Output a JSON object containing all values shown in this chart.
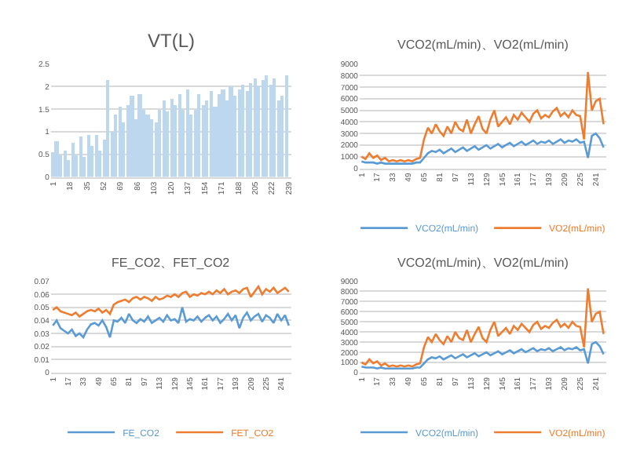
{
  "chart_data": [
    {
      "type": "bar",
      "title": "VT(L)",
      "color": "#bdd7ee",
      "grid": "y",
      "legend": false,
      "x": [
        1,
        5,
        9,
        13,
        17,
        21,
        25,
        29,
        33,
        37,
        41,
        45,
        49,
        53,
        57,
        61,
        65,
        69,
        73,
        77,
        81,
        85,
        89,
        93,
        97,
        101,
        105,
        109,
        113,
        117,
        121,
        125,
        129,
        133,
        137,
        141,
        145,
        149,
        153,
        157,
        161,
        165,
        169,
        173,
        177,
        181,
        185,
        189,
        193,
        197,
        201,
        205,
        209,
        213,
        217,
        221,
        225,
        229,
        233,
        237
      ],
      "values": [
        0.55,
        0.8,
        0.5,
        0.6,
        0.4,
        0.75,
        0.5,
        0.9,
        0.45,
        0.95,
        0.7,
        0.95,
        0.6,
        0.85,
        2.15,
        1.0,
        1.4,
        1.55,
        1.2,
        1.6,
        1.8,
        1.3,
        1.85,
        1.5,
        1.4,
        1.3,
        1.2,
        1.5,
        1.7,
        1.45,
        1.75,
        1.6,
        1.85,
        1.5,
        1.95,
        1.4,
        1.5,
        1.85,
        1.6,
        1.7,
        1.9,
        1.55,
        1.85,
        1.95,
        1.7,
        2.0,
        1.8,
        1.95,
        2.05,
        1.9,
        2.1,
        2.2,
        2.0,
        2.15,
        2.25,
        2.05,
        2.2,
        1.7,
        1.8,
        2.25
      ],
      "xlim": [
        -1,
        242
      ],
      "xticks": [
        1,
        18,
        35,
        52,
        69,
        86,
        103,
        120,
        137,
        154,
        171,
        188,
        205,
        222,
        239
      ],
      "ylim": [
        0,
        2.5
      ],
      "yticks": [
        0,
        0.5,
        1,
        1.5,
        2,
        2.5
      ]
    },
    {
      "type": "line",
      "title": "VCO2(mL/min)、VO2(mL/min)",
      "grid": "y",
      "legend": "bottom",
      "marker": "none",
      "line_style": "solid",
      "x": [
        1,
        5,
        9,
        13,
        17,
        21,
        25,
        29,
        33,
        37,
        41,
        45,
        49,
        53,
        57,
        61,
        65,
        69,
        73,
        77,
        81,
        85,
        89,
        93,
        97,
        101,
        105,
        109,
        113,
        117,
        121,
        125,
        129,
        133,
        137,
        141,
        145,
        149,
        153,
        157,
        161,
        165,
        169,
        173,
        177,
        181,
        185,
        189,
        193,
        197,
        201,
        205,
        209,
        213,
        217,
        221,
        225,
        229,
        233,
        237,
        241,
        245,
        249
      ],
      "series": [
        {
          "name": "VCO2(mL/min)",
          "color": "#5b9bd5",
          "values": [
            600,
            500,
            500,
            500,
            400,
            500,
            400,
            400,
            400,
            400,
            400,
            400,
            400,
            400,
            500,
            500,
            900,
            1300,
            1500,
            1400,
            1600,
            1300,
            1500,
            1700,
            1400,
            1600,
            1800,
            1500,
            1700,
            1900,
            1600,
            1800,
            2000,
            1700,
            1900,
            2100,
            1800,
            2000,
            2200,
            1900,
            2100,
            2300,
            2000,
            2200,
            2400,
            2100,
            2300,
            2200,
            2400,
            2100,
            2300,
            2500,
            2200,
            2400,
            2300,
            2500,
            2200,
            2300,
            900,
            2800,
            3000,
            2600,
            1800
          ]
        },
        {
          "name": "VO2(mL/min)",
          "color": "#ed7d31",
          "values": [
            1000,
            800,
            1300,
            900,
            1100,
            700,
            900,
            600,
            700,
            600,
            700,
            600,
            700,
            600,
            800,
            900,
            2500,
            3500,
            3000,
            3800,
            3200,
            2800,
            3600,
            3000,
            4000,
            3400,
            3200,
            4200,
            3000,
            3800,
            4500,
            3400,
            3000,
            4200,
            5000,
            3600,
            4000,
            4400,
            3800,
            4600,
            4200,
            4800,
            4400,
            4000,
            4700,
            5000,
            4300,
            4600,
            4400,
            4900,
            5200,
            4500,
            4800,
            4400,
            5000,
            4600,
            4500,
            2500,
            8300,
            5000,
            5800,
            6000,
            3800
          ]
        }
      ],
      "xlim": [
        -1,
        252
      ],
      "xticks": [
        1,
        17,
        33,
        49,
        65,
        81,
        97,
        113,
        129,
        145,
        161,
        177,
        193,
        209,
        225,
        241
      ],
      "ylim": [
        0,
        9000
      ],
      "yticks": [
        0,
        1000,
        2000,
        3000,
        4000,
        5000,
        6000,
        7000,
        8000,
        9000
      ]
    },
    {
      "type": "line",
      "title": "FE_CO2、FET_CO2",
      "grid": "y",
      "legend": "bottom",
      "marker": "none",
      "line_style": "solid",
      "x": [
        1,
        5,
        9,
        13,
        17,
        21,
        25,
        29,
        33,
        37,
        41,
        45,
        49,
        53,
        57,
        61,
        65,
        69,
        73,
        77,
        81,
        85,
        89,
        93,
        97,
        101,
        105,
        109,
        113,
        117,
        121,
        125,
        129,
        133,
        137,
        141,
        145,
        149,
        153,
        157,
        161,
        165,
        169,
        173,
        177,
        181,
        185,
        189,
        193,
        197,
        201,
        205,
        209,
        213,
        217,
        221,
        225,
        229,
        233,
        237,
        241,
        245,
        249
      ],
      "series": [
        {
          "name": "FE_CO2",
          "color": "#5b9bd5",
          "values": [
            0.036,
            0.04,
            0.034,
            0.032,
            0.03,
            0.033,
            0.028,
            0.03,
            0.027,
            0.033,
            0.037,
            0.038,
            0.036,
            0.04,
            0.035,
            0.027,
            0.04,
            0.039,
            0.042,
            0.038,
            0.045,
            0.04,
            0.038,
            0.041,
            0.039,
            0.043,
            0.038,
            0.04,
            0.042,
            0.039,
            0.044,
            0.04,
            0.041,
            0.038,
            0.05,
            0.039,
            0.041,
            0.04,
            0.043,
            0.039,
            0.042,
            0.044,
            0.04,
            0.043,
            0.038,
            0.041,
            0.045,
            0.04,
            0.044,
            0.034,
            0.042,
            0.046,
            0.04,
            0.043,
            0.045,
            0.039,
            0.044,
            0.042,
            0.038,
            0.045,
            0.04,
            0.044,
            0.036
          ]
        },
        {
          "name": "FET_CO2",
          "color": "#ed7d31",
          "values": [
            0.048,
            0.05,
            0.047,
            0.046,
            0.045,
            0.044,
            0.046,
            0.043,
            0.045,
            0.047,
            0.048,
            0.047,
            0.049,
            0.046,
            0.048,
            0.045,
            0.052,
            0.054,
            0.055,
            0.056,
            0.054,
            0.057,
            0.058,
            0.056,
            0.058,
            0.057,
            0.055,
            0.058,
            0.056,
            0.057,
            0.059,
            0.058,
            0.06,
            0.058,
            0.061,
            0.062,
            0.058,
            0.06,
            0.059,
            0.061,
            0.06,
            0.062,
            0.06,
            0.063,
            0.061,
            0.064,
            0.06,
            0.062,
            0.063,
            0.061,
            0.064,
            0.065,
            0.058,
            0.062,
            0.066,
            0.06,
            0.064,
            0.062,
            0.065,
            0.061,
            0.063,
            0.065,
            0.062
          ]
        }
      ],
      "xlim": [
        -1,
        252
      ],
      "xticks": [
        1,
        17,
        33,
        49,
        65,
        81,
        97,
        113,
        129,
        145,
        161,
        177,
        193,
        209,
        225,
        241
      ],
      "ylim": [
        0,
        0.07
      ],
      "yticks": [
        0,
        0.01,
        0.02,
        0.03,
        0.04,
        0.05,
        0.06,
        0.07
      ]
    },
    {
      "type": "line",
      "title": "VCO2(mL/min)、VO2(mL/min)",
      "grid": "y",
      "legend": "bottom",
      "marker": "none",
      "line_style": "solid",
      "x": [
        1,
        5,
        9,
        13,
        17,
        21,
        25,
        29,
        33,
        37,
        41,
        45,
        49,
        53,
        57,
        61,
        65,
        69,
        73,
        77,
        81,
        85,
        89,
        93,
        97,
        101,
        105,
        109,
        113,
        117,
        121,
        125,
        129,
        133,
        137,
        141,
        145,
        149,
        153,
        157,
        161,
        165,
        169,
        173,
        177,
        181,
        185,
        189,
        193,
        197,
        201,
        205,
        209,
        213,
        217,
        221,
        225,
        229,
        233,
        237,
        241,
        245,
        249
      ],
      "series": [
        {
          "name": "VCO2(mL/min)",
          "color": "#5b9bd5",
          "values": [
            600,
            500,
            500,
            500,
            400,
            500,
            400,
            400,
            400,
            400,
            400,
            400,
            400,
            400,
            500,
            500,
            900,
            1300,
            1500,
            1400,
            1600,
            1300,
            1500,
            1700,
            1400,
            1600,
            1800,
            1500,
            1700,
            1900,
            1600,
            1800,
            2000,
            1700,
            1900,
            2100,
            1800,
            2000,
            2200,
            1900,
            2100,
            2300,
            2000,
            2200,
            2400,
            2100,
            2300,
            2200,
            2400,
            2100,
            2300,
            2500,
            2200,
            2400,
            2300,
            2500,
            2200,
            2300,
            900,
            2800,
            3000,
            2600,
            1800
          ]
        },
        {
          "name": "VO2(mL/min)",
          "color": "#ed7d31",
          "values": [
            1000,
            800,
            1300,
            900,
            1100,
            700,
            900,
            600,
            700,
            600,
            700,
            600,
            700,
            600,
            800,
            900,
            2500,
            3500,
            3000,
            3800,
            3200,
            2800,
            3600,
            3000,
            4000,
            3400,
            3200,
            4200,
            3000,
            3800,
            4500,
            3400,
            3000,
            4200,
            5000,
            3600,
            4000,
            4400,
            3800,
            4600,
            4200,
            4800,
            4400,
            4000,
            4700,
            5000,
            4300,
            4600,
            4400,
            4900,
            5200,
            4500,
            4800,
            4400,
            5000,
            4600,
            4500,
            2500,
            8300,
            5000,
            5800,
            6000,
            3800
          ]
        }
      ],
      "xlim": [
        -1,
        252
      ],
      "xticks": [
        1,
        17,
        33,
        49,
        65,
        81,
        97,
        113,
        129,
        145,
        161,
        177,
        193,
        209,
        225,
        241
      ],
      "ylim": [
        0,
        9000
      ],
      "yticks": [
        0,
        1000,
        2000,
        3000,
        4000,
        5000,
        6000,
        7000,
        8000,
        9000
      ]
    }
  ]
}
